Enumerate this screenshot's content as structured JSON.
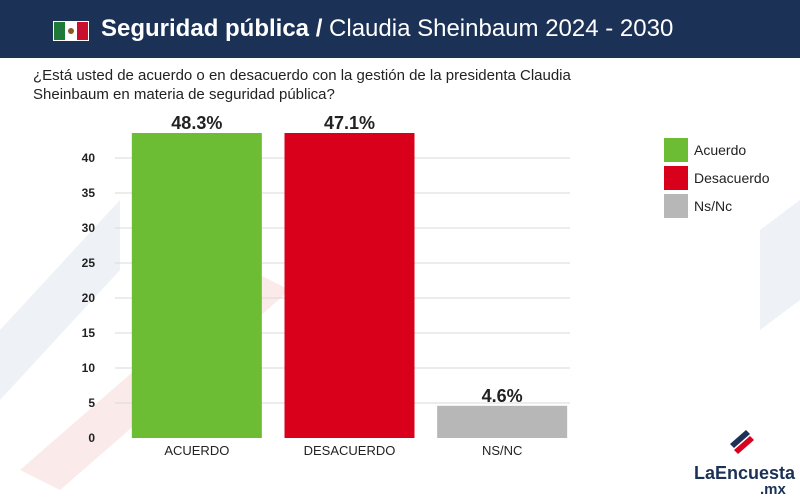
{
  "header": {
    "title_bold": "Seguridad pública /",
    "title_rest": "Claudia Sheinbaum 2024 - 2030"
  },
  "question": "¿Está usted de acuerdo o en desacuerdo con la gestión de la presidenta Claudia Sheinbaum en materia de seguridad pública?",
  "colors": {
    "header_bg": "#1b3156",
    "acuerdo": "#6cbd34",
    "desacuerdo": "#d9001b",
    "nsnc": "#b7b7b7"
  },
  "chart_data": {
    "type": "bar",
    "title": "",
    "categories": [
      "ACUERDO",
      "DESACUERDO",
      "NS/NC"
    ],
    "values": [
      48.3,
      47.1,
      4.6
    ],
    "value_labels": [
      "48.3%",
      "47.1%",
      "4.6%"
    ],
    "yticks": [
      0,
      5,
      10,
      15,
      20,
      25,
      30,
      35,
      40
    ],
    "ylim": [
      0,
      40
    ],
    "grid": true,
    "legend_position": "right",
    "legend": [
      "Acuerdo",
      "Desacuerdo",
      "Ns/Nc"
    ],
    "series_colors": [
      "#6cbd34",
      "#d9001b",
      "#b7b7b7"
    ]
  },
  "logo": {
    "name": "LaEncuesta",
    "suffix": ".mx"
  }
}
